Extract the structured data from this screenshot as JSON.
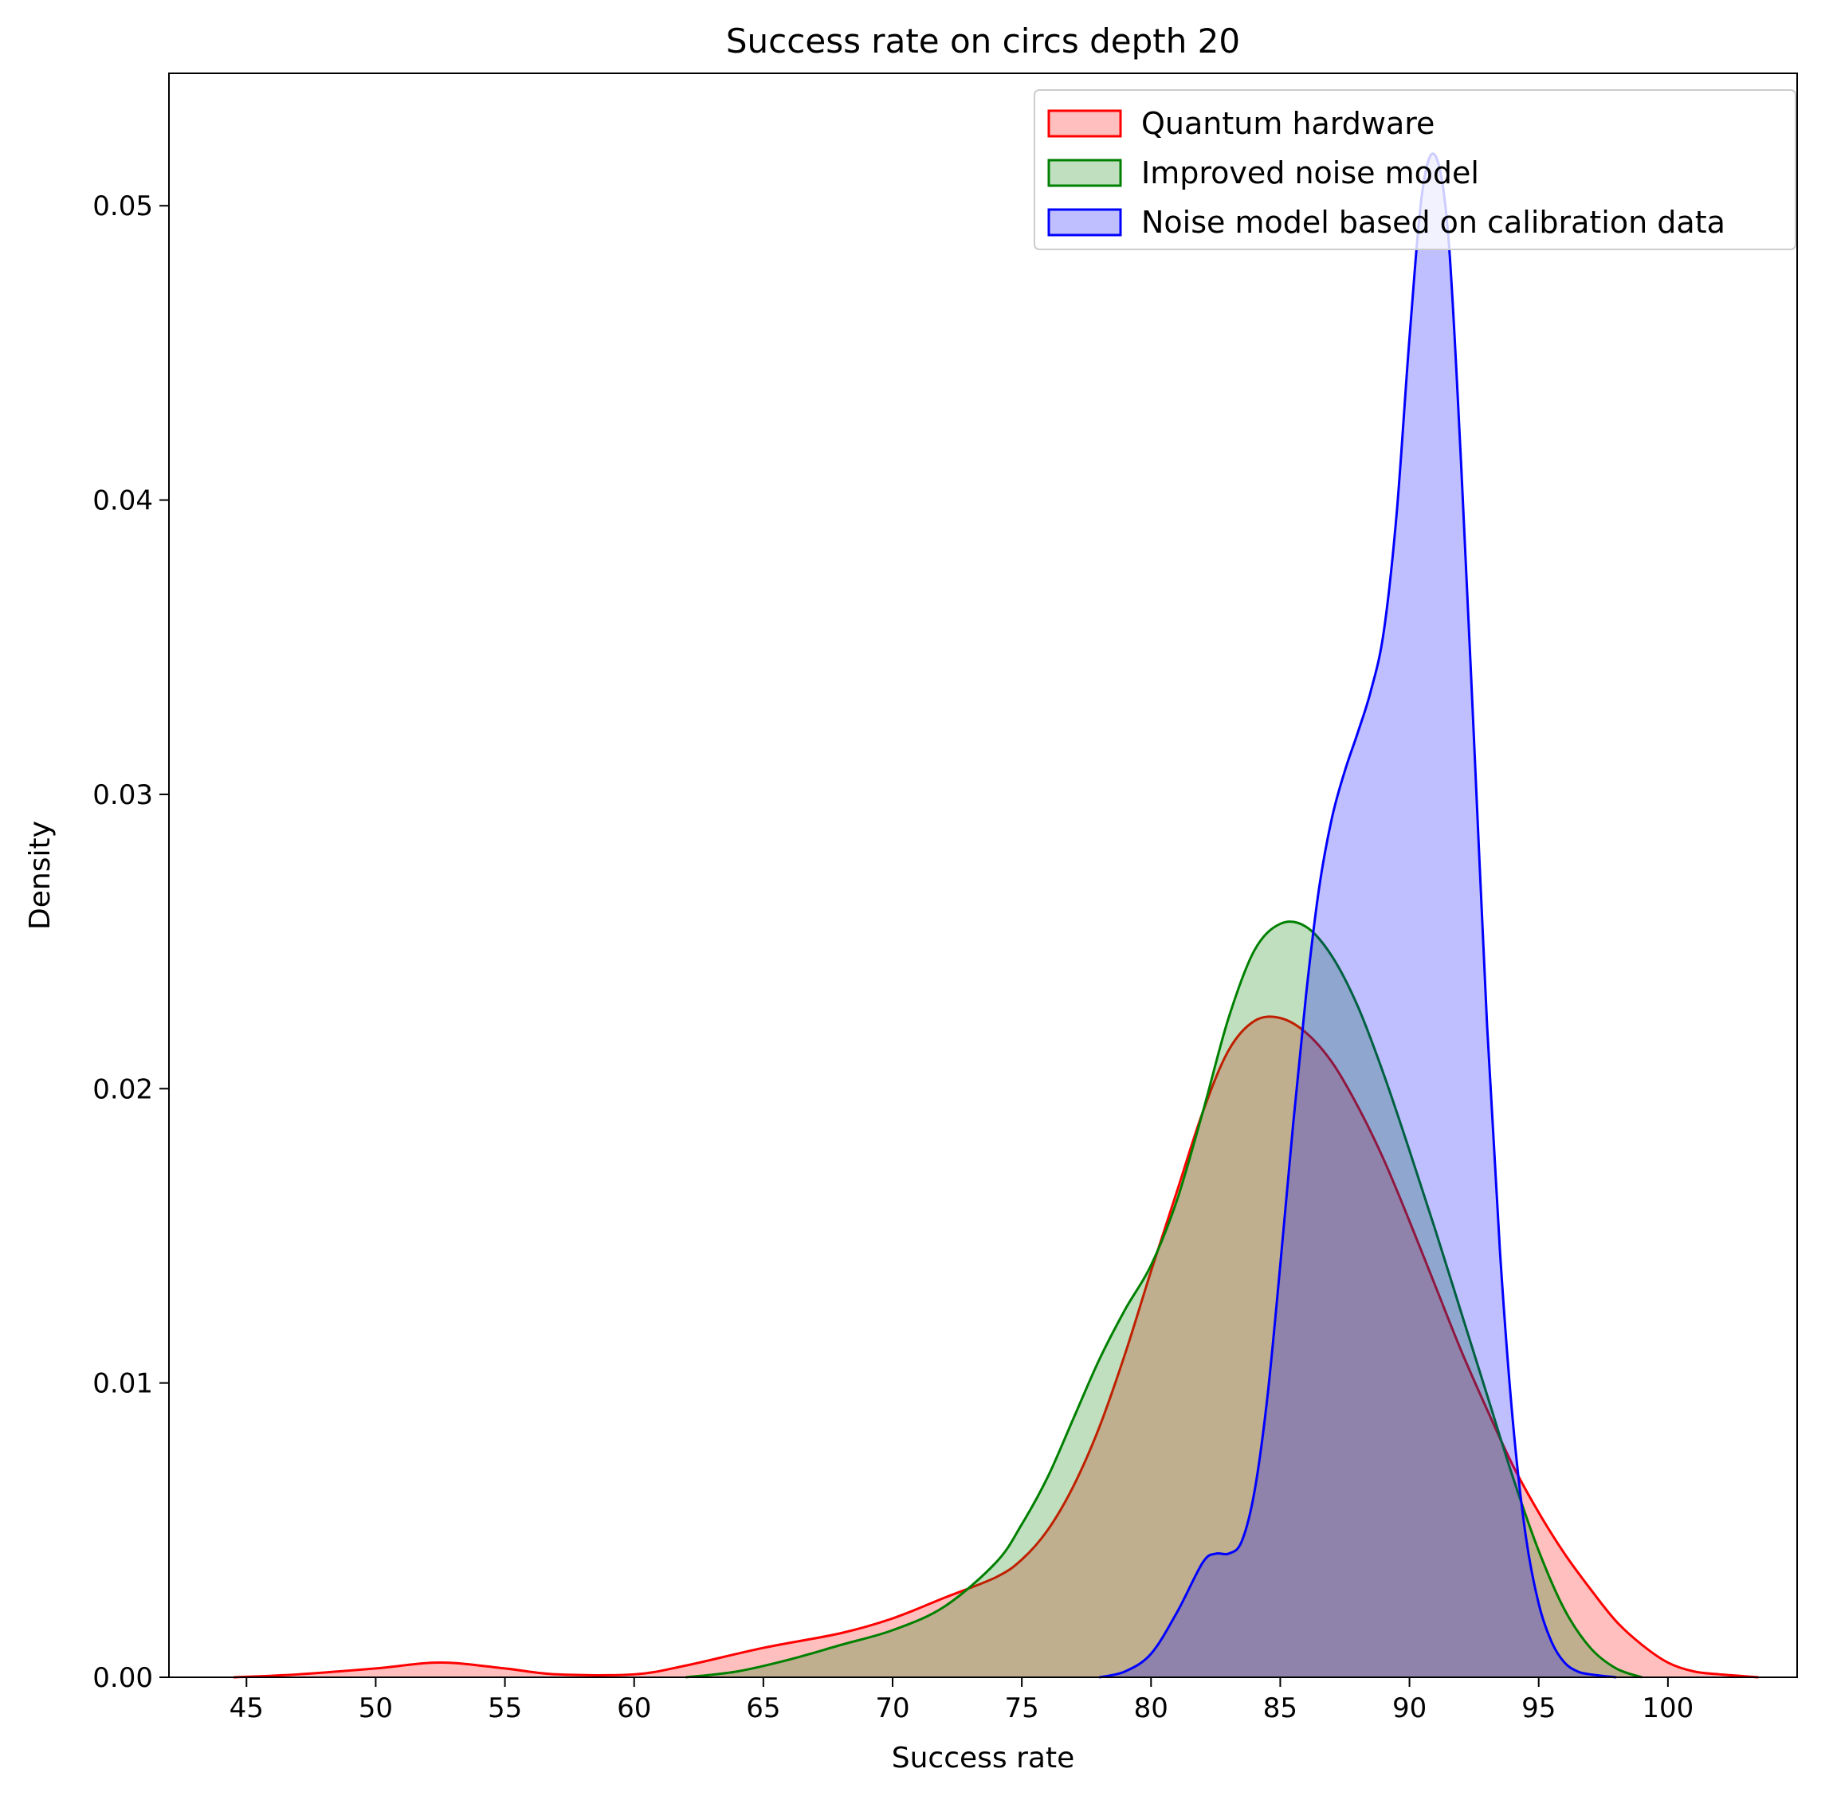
{
  "chart_data": {
    "type": "area",
    "title": "Success rate on circs depth 20",
    "xlabel": "Success rate",
    "ylabel": "Density",
    "xlim": [
      42,
      105
    ],
    "ylim": [
      0,
      0.0545
    ],
    "xticks": [
      45,
      50,
      55,
      60,
      65,
      70,
      75,
      80,
      85,
      90,
      95,
      100
    ],
    "yticks": [
      0.0,
      0.01,
      0.02,
      0.03,
      0.04,
      0.05
    ],
    "ytick_labels": [
      "0.00",
      "0.01",
      "0.02",
      "0.03",
      "0.04",
      "0.05"
    ],
    "grid": false,
    "legend_position": "top-right",
    "series": [
      {
        "name": "Quantum hardware",
        "color": "#ff0000",
        "fill": "rgba(255,0,0,0.25)",
        "x": [
          44.5,
          47,
          50,
          52.5,
          55,
          57,
          60,
          62,
          65,
          68,
          70,
          72,
          74,
          75,
          76,
          77,
          78,
          79,
          80,
          81,
          82,
          83,
          84,
          85,
          86,
          87,
          88,
          89,
          90,
          91,
          92,
          93,
          94,
          95,
          96,
          97,
          98,
          99,
          100,
          101,
          102,
          103.5
        ],
        "y": [
          0.0,
          0.0001,
          0.0003,
          0.0005,
          0.0003,
          0.0001,
          0.0001,
          0.0004,
          0.001,
          0.0015,
          0.002,
          0.0027,
          0.0034,
          0.004,
          0.005,
          0.0065,
          0.0085,
          0.011,
          0.0138,
          0.0165,
          0.0192,
          0.0213,
          0.0223,
          0.0224,
          0.0219,
          0.0209,
          0.0194,
          0.0176,
          0.0155,
          0.0133,
          0.0111,
          0.0091,
          0.0072,
          0.0056,
          0.0042,
          0.003,
          0.0019,
          0.0011,
          0.0005,
          0.0002,
          0.0001,
          0.0
        ]
      },
      {
        "name": "Improved noise model",
        "color": "#008000",
        "fill": "rgba(0,128,0,0.25)",
        "x": [
          62,
          64,
          66,
          68,
          70,
          72,
          74,
          75,
          76,
          77,
          78,
          79,
          80,
          81,
          82,
          83,
          84,
          85,
          86,
          87,
          88,
          89,
          90,
          91,
          92,
          93,
          94,
          95,
          96,
          97,
          98,
          99
        ],
        "y": [
          0.0,
          0.0002,
          0.0006,
          0.0011,
          0.0016,
          0.0024,
          0.0039,
          0.0052,
          0.0068,
          0.0088,
          0.0108,
          0.0125,
          0.014,
          0.0162,
          0.0192,
          0.0224,
          0.0247,
          0.0256,
          0.0255,
          0.0245,
          0.0228,
          0.0205,
          0.0179,
          0.0152,
          0.0124,
          0.0096,
          0.0068,
          0.0043,
          0.0023,
          0.001,
          0.0003,
          0.0
        ]
      },
      {
        "name": "Noise model based on calibration data",
        "color": "#0000ff",
        "fill": "rgba(0,0,255,0.25)",
        "x": [
          78,
          79,
          80,
          81,
          82,
          82.5,
          83,
          83.5,
          84,
          84.5,
          85,
          85.5,
          86,
          86.5,
          87,
          87.5,
          88,
          88.5,
          89,
          89.5,
          90,
          90.5,
          91,
          91.5,
          92,
          92.5,
          93,
          93.5,
          94,
          94.5,
          95,
          95.5,
          96,
          96.5,
          97,
          98
        ],
        "y": [
          0.0,
          0.0002,
          0.0008,
          0.0022,
          0.0039,
          0.0042,
          0.0042,
          0.0046,
          0.0063,
          0.0095,
          0.014,
          0.0188,
          0.0232,
          0.0268,
          0.0292,
          0.0308,
          0.0321,
          0.0335,
          0.0355,
          0.0395,
          0.0455,
          0.0505,
          0.0517,
          0.049,
          0.0412,
          0.0318,
          0.0222,
          0.0145,
          0.0087,
          0.0048,
          0.0025,
          0.0012,
          0.0005,
          0.0002,
          0.0001,
          0.0
        ]
      }
    ]
  }
}
